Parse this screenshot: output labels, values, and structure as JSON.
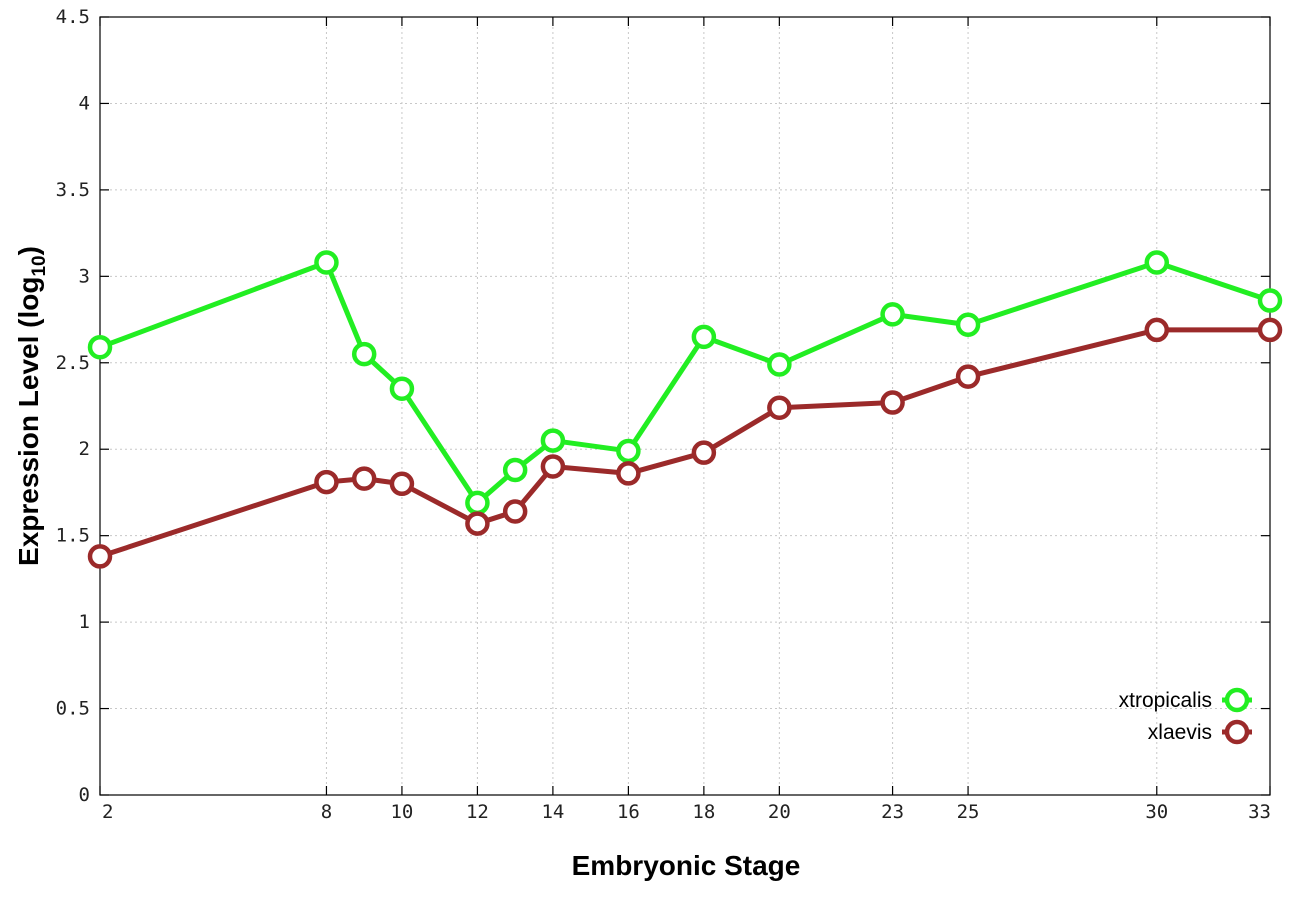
{
  "chart_data": {
    "type": "line",
    "title": "",
    "xlabel": "Embryonic Stage",
    "ylabel_main": "Expression Level (log",
    "ylabel_sub": "10",
    "ylabel_close": ")",
    "xlim": [
      2,
      33
    ],
    "ylim": [
      0,
      4.5
    ],
    "xticks": [
      2,
      8,
      10,
      12,
      14,
      16,
      18,
      20,
      23,
      25,
      30,
      33
    ],
    "yticks": [
      {
        "value": 0,
        "label": "0"
      },
      {
        "value": 0.5,
        "label": "0.5"
      },
      {
        "value": 1,
        "label": "1"
      },
      {
        "value": 1.5,
        "label": "1.5"
      },
      {
        "value": 2,
        "label": "2"
      },
      {
        "value": 2.5,
        "label": "2.5"
      },
      {
        "value": 3,
        "label": "3"
      },
      {
        "value": 3.5,
        "label": "3.5"
      },
      {
        "value": 4,
        "label": "4"
      },
      {
        "value": 4.5,
        "label": "4.5"
      }
    ],
    "grid": true,
    "legend_position": "bottom-right",
    "x": [
      2,
      8,
      9,
      10,
      12,
      13,
      14,
      16,
      18,
      20,
      23,
      25,
      30,
      33
    ],
    "series": [
      {
        "name": "xtropicalis",
        "color": "#22ee22",
        "values": [
          2.59,
          3.08,
          2.55,
          2.35,
          1.69,
          1.88,
          2.05,
          1.99,
          2.65,
          2.49,
          2.78,
          2.72,
          3.08,
          2.86
        ]
      },
      {
        "name": "xlaevis",
        "color": "#9b2a2a",
        "values": [
          1.38,
          1.81,
          1.83,
          1.8,
          1.57,
          1.64,
          1.9,
          1.86,
          1.98,
          2.24,
          2.27,
          2.42,
          2.69,
          2.69
        ]
      }
    ]
  }
}
